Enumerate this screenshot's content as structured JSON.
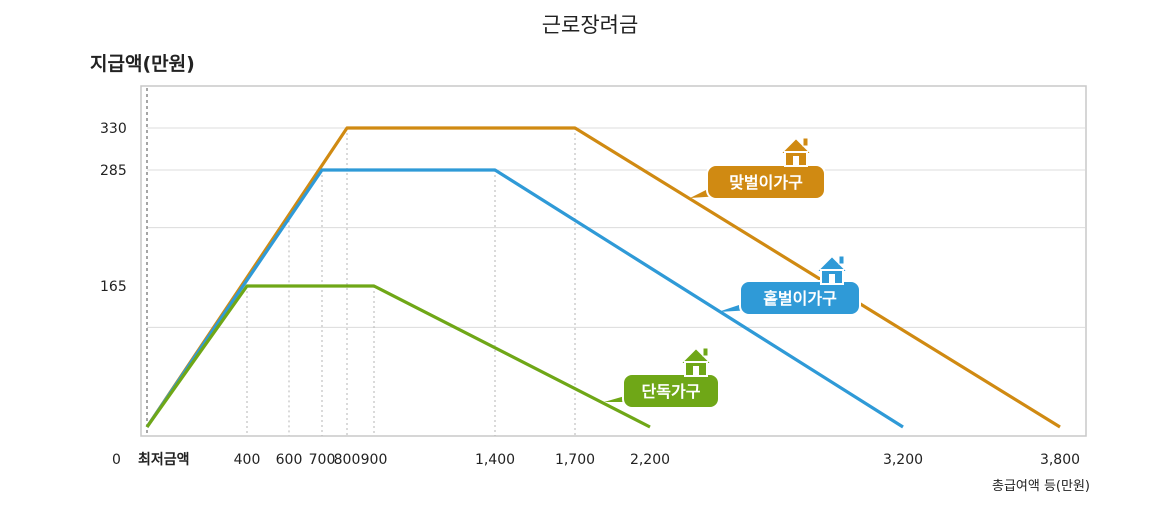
{
  "chart_data": {
    "type": "line",
    "title": "근로장려금",
    "ylabel": "지급액(만원)",
    "xlabel": "총급여액 등(만원)",
    "xlim": [
      0,
      3800
    ],
    "ylim": [
      0,
      330
    ],
    "yticks": [
      {
        "label": "0",
        "value": 0
      },
      {
        "label": "165",
        "value": 165
      },
      {
        "label": "285",
        "value": 285
      },
      {
        "label": "330",
        "value": 330
      }
    ],
    "xticks": [
      {
        "label": "최저금액",
        "value": 0
      },
      {
        "label": "400",
        "value": 400
      },
      {
        "label": "600",
        "value": 600
      },
      {
        "label": "700",
        "value": 700
      },
      {
        "label": "800",
        "value": 800
      },
      {
        "label": "900",
        "value": 900
      },
      {
        "label": "1,400",
        "value": 1400
      },
      {
        "label": "1,700",
        "value": 1700
      },
      {
        "label": "2,200",
        "value": 2200
      },
      {
        "label": "3,200",
        "value": 3200
      },
      {
        "label": "3,800",
        "value": 3800
      }
    ],
    "grid_y": [
      110,
      220,
      285,
      330
    ],
    "series": [
      {
        "name": "맞벌이가구",
        "color": "#d08a12",
        "x": [
          0,
          800,
          1700,
          3800
        ],
        "y": [
          0,
          330,
          330,
          0
        ],
        "icon": "house-icon"
      },
      {
        "name": "홑벌이가구",
        "color": "#2f9ad7",
        "x": [
          0,
          700,
          1400,
          3200
        ],
        "y": [
          0,
          285,
          285,
          0
        ],
        "icon": "house-icon"
      },
      {
        "name": "단독가구",
        "color": "#6fa717",
        "x": [
          0,
          400,
          900,
          2200
        ],
        "y": [
          0,
          165,
          165,
          0
        ],
        "icon": "house-icon"
      }
    ]
  }
}
